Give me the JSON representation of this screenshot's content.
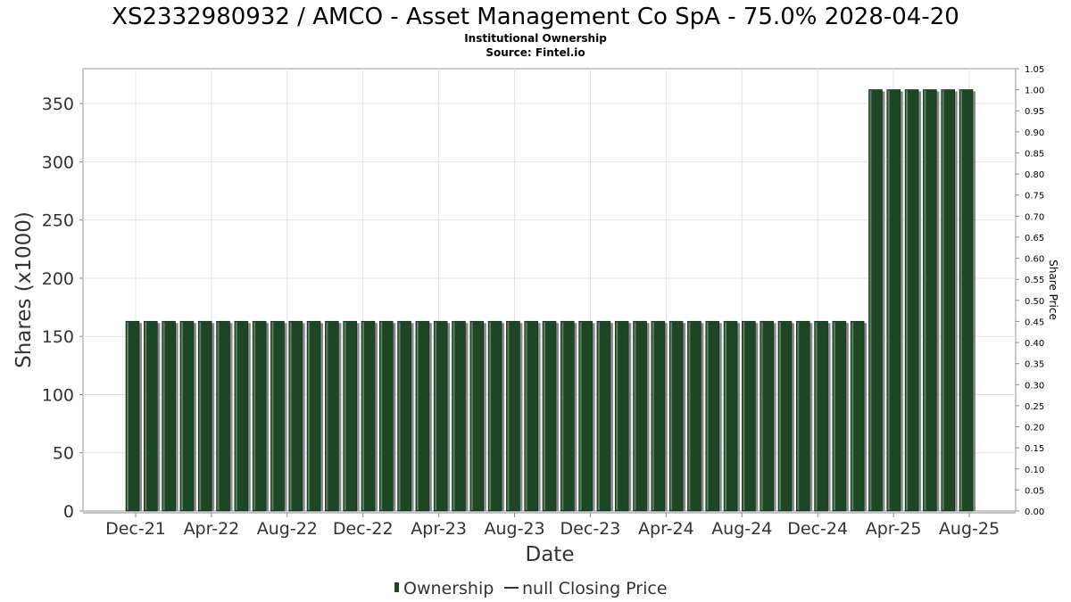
{
  "chart_data": {
    "type": "bar",
    "title": "XS2332980932 / AMCO - Asset Management Co SpA - 75.0% 2028-04-20",
    "subtitle_1": "Institutional Ownership",
    "subtitle_2": "Source: Fintel.io",
    "xlabel": "Date",
    "ylabel": "Shares (x1000)",
    "y2label": "Share Price",
    "ylim": [
      0,
      380
    ],
    "y2lim": [
      0,
      1.05
    ],
    "yticks": [
      "0",
      "50",
      "100",
      "150",
      "200",
      "250",
      "300",
      "350"
    ],
    "y2ticks": [
      "0.00",
      "0.05",
      "0.10",
      "0.15",
      "0.20",
      "0.25",
      "0.30",
      "0.35",
      "0.40",
      "0.45",
      "0.50",
      "0.55",
      "0.60",
      "0.65",
      "0.70",
      "0.75",
      "0.80",
      "0.85",
      "0.90",
      "0.95",
      "1.00",
      "1.05"
    ],
    "xticks": [
      "Dec-21",
      "Apr-22",
      "Aug-22",
      "Dec-22",
      "Apr-23",
      "Aug-23",
      "Dec-23",
      "Apr-24",
      "Aug-24",
      "Dec-24",
      "Apr-25",
      "Aug-25"
    ],
    "grid": true,
    "legend_placement": "bottom-center",
    "bar_color": "#1e4525",
    "series": [
      {
        "name": "Ownership",
        "values": [
          163,
          163,
          163,
          163,
          163,
          163,
          163,
          163,
          163,
          163,
          163,
          163,
          163,
          163,
          163,
          163,
          163,
          163,
          163,
          163,
          163,
          163,
          163,
          163,
          163,
          163,
          163,
          163,
          163,
          163,
          163,
          163,
          163,
          163,
          163,
          163,
          163,
          163,
          163,
          163,
          163,
          362,
          362,
          362,
          362,
          362,
          362
        ]
      }
    ],
    "legend": {
      "ownership_label": "Ownership",
      "price_label": "null Closing Price"
    }
  }
}
